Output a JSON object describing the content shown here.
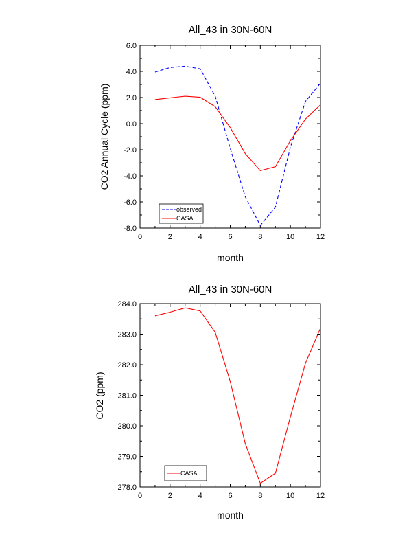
{
  "chart_data": [
    {
      "type": "line",
      "title": "All_43 in 30N-60N",
      "xlabel": "month",
      "ylabel": "CO2 Annual Cycle (ppm)",
      "xlim": [
        0,
        12
      ],
      "ylim": [
        -8.0,
        6.0
      ],
      "xticks": [
        "0",
        "2",
        "4",
        "6",
        "8",
        "10",
        "12"
      ],
      "yticks": [
        "-8.0",
        "-6.0",
        "-4.0",
        "-2.0",
        "0.0",
        "2.0",
        "4.0",
        "6.0"
      ],
      "grid": false,
      "legend_position": "bottom-left",
      "x": [
        1,
        2,
        3,
        4,
        5,
        6,
        7,
        8,
        9,
        10,
        11,
        12
      ],
      "series": [
        {
          "name": "observed",
          "color": "#0000ff",
          "style": "dashed",
          "values": [
            3.95,
            4.3,
            4.4,
            4.2,
            2.1,
            -1.9,
            -5.6,
            -7.8,
            -6.4,
            -1.8,
            1.7,
            3.1
          ]
        },
        {
          "name": "CASA",
          "color": "#ff0000",
          "style": "solid",
          "values": [
            1.85,
            1.98,
            2.1,
            2.02,
            1.3,
            -0.3,
            -2.3,
            -3.6,
            -3.3,
            -1.3,
            0.35,
            1.45
          ]
        }
      ]
    },
    {
      "type": "line",
      "title": "All_43 in 30N-60N",
      "xlabel": "month",
      "ylabel": "CO2 (ppm)",
      "xlim": [
        0,
        12
      ],
      "ylim": [
        278.0,
        284.0
      ],
      "xticks": [
        "0",
        "2",
        "4",
        "6",
        "8",
        "10",
        "12"
      ],
      "yticks": [
        "278.0",
        "279.0",
        "280.0",
        "281.0",
        "282.0",
        "283.0",
        "284.0"
      ],
      "grid": false,
      "legend_position": "bottom-left",
      "x": [
        1,
        2,
        3,
        4,
        5,
        6,
        7,
        8,
        9,
        10,
        11,
        12
      ],
      "series": [
        {
          "name": "CASA",
          "color": "#ff0000",
          "style": "solid",
          "values": [
            283.6,
            283.72,
            283.86,
            283.76,
            283.06,
            281.45,
            279.42,
            278.12,
            278.45,
            280.3,
            282.05,
            283.2
          ]
        }
      ]
    }
  ]
}
